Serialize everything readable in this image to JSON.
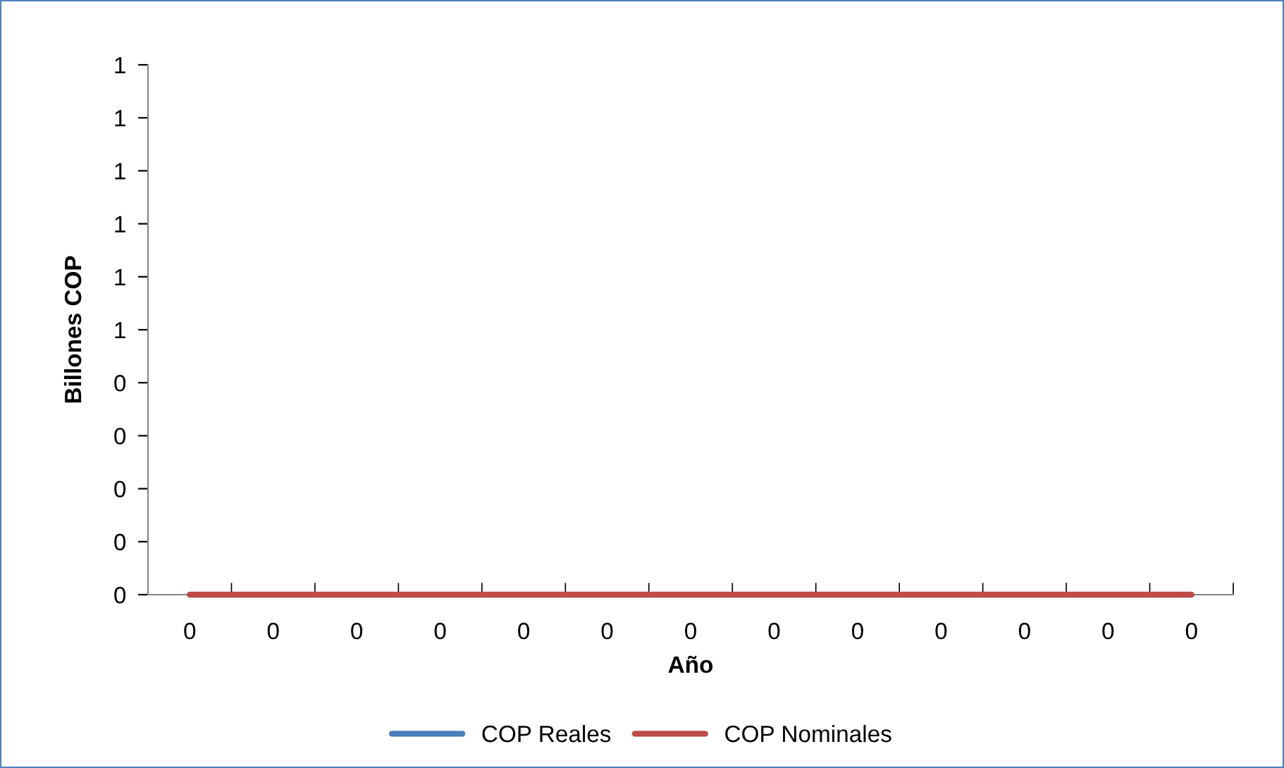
{
  "chart_data": {
    "type": "line",
    "xlabel": "Año",
    "ylabel": "Billones COP",
    "categories": [
      "0",
      "0",
      "0",
      "0",
      "0",
      "0",
      "0",
      "0",
      "0",
      "0",
      "0",
      "0",
      "0"
    ],
    "series": [
      {
        "name": "COP Reales",
        "color": "#4a7ebb",
        "values": [
          null,
          null,
          null,
          null,
          null,
          null,
          null,
          null,
          null,
          null,
          null,
          null,
          null
        ]
      },
      {
        "name": "COP Nominales",
        "color": "#be4b48",
        "values": [
          0,
          0,
          0,
          0,
          0,
          0,
          0,
          0,
          0,
          0,
          0,
          0,
          0
        ]
      }
    ],
    "ylim": [
      0,
      1
    ],
    "yticks": [
      0,
      {
        "value": 0.1,
        "label": "0"
      },
      {
        "value": 0.2,
        "label": "0"
      },
      {
        "value": 0.3,
        "label": "0"
      },
      {
        "value": 0.4,
        "label": "0"
      },
      {
        "value": 0.5,
        "label": "1"
      },
      {
        "value": 0.6,
        "label": "1"
      },
      {
        "value": 0.7,
        "label": "1"
      },
      {
        "value": 0.8,
        "label": "1"
      },
      {
        "value": 0.9,
        "label": "1"
      },
      1
    ],
    "grid": false,
    "legend": "bottom",
    "marker": "none",
    "line_style": "solid"
  }
}
